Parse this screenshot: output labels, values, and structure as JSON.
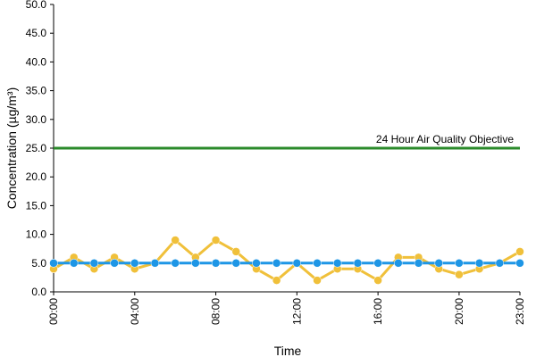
{
  "chart_data": {
    "type": "line",
    "x_label": "Time",
    "y_label": "Concentration (µg/m³)",
    "categories": [
      "00:00",
      null,
      null,
      null,
      "04:00",
      null,
      null,
      null,
      "08:00",
      null,
      null,
      null,
      "12:00",
      null,
      null,
      null,
      "16:00",
      null,
      null,
      null,
      "20:00",
      null,
      null,
      "23:00"
    ],
    "series": [
      {
        "color": "#f0c03a",
        "values": [
          4,
          6,
          4,
          6,
          4,
          5,
          9,
          6,
          9,
          7,
          4,
          2,
          5,
          2,
          4,
          4,
          2,
          6,
          6,
          4,
          3,
          4,
          5,
          7
        ]
      },
      {
        "color": "#1e96e6",
        "values": [
          5,
          5,
          5,
          5,
          5,
          5,
          5,
          5,
          5,
          5,
          5,
          5,
          5,
          5,
          5,
          5,
          5,
          5,
          5,
          5,
          5,
          5,
          5,
          5
        ]
      }
    ],
    "reference_line": {
      "value": 25,
      "label": "24 Hour Air Quality Objective",
      "color": "#2a8a2a"
    },
    "ylim": [
      0,
      50
    ],
    "yticks": [
      {
        "value": 0,
        "label": "0.0"
      },
      {
        "value": 5,
        "label": "5.0"
      },
      {
        "value": 10,
        "label": "10.0"
      },
      {
        "value": 15,
        "label": "15.0"
      },
      {
        "value": 20,
        "label": "20.0"
      },
      {
        "value": 25,
        "label": "25.0"
      },
      {
        "value": 30,
        "label": "30.0"
      },
      {
        "value": 35,
        "label": "35.0"
      },
      {
        "value": 40,
        "label": "40.0"
      },
      {
        "value": 45,
        "label": "45.0"
      },
      {
        "value": 50,
        "label": "50.0"
      }
    ],
    "grid": false
  }
}
